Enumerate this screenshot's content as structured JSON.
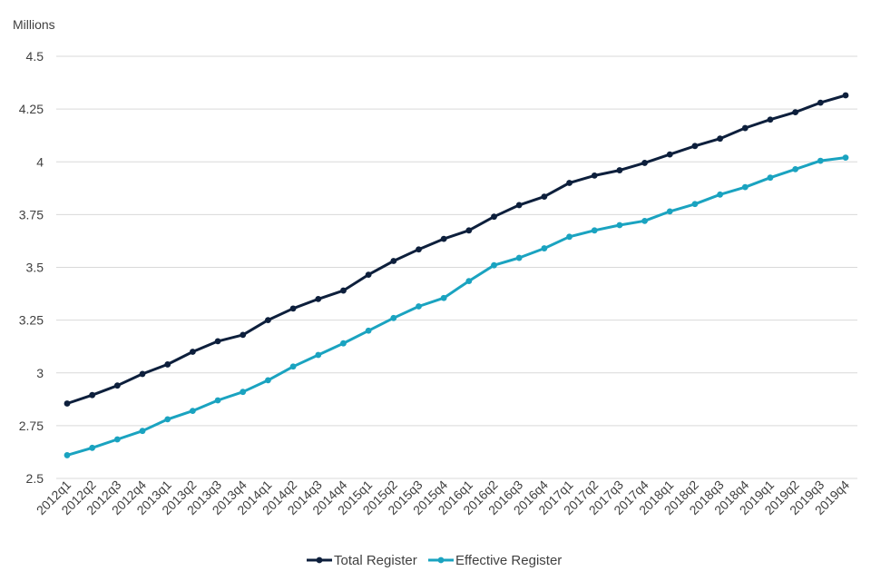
{
  "chart_data": {
    "type": "line",
    "unit_label": "Millions",
    "categories": [
      "2012q1",
      "2012q2",
      "2012q3",
      "2012q4",
      "2013q1",
      "2013q2",
      "2013q3",
      "2013q4",
      "2014q1",
      "2014q2",
      "2014q3",
      "2014q4",
      "2015q1",
      "2015q2",
      "2015q3",
      "2015q4",
      "2016q1",
      "2016q2",
      "2016q3",
      "2016q4",
      "2017q1",
      "2017q2",
      "2017q3",
      "2017q4",
      "2018q1",
      "2018q2",
      "2018q3",
      "2018q4",
      "2019q1",
      "2019q2",
      "2019q3",
      "2019q4"
    ],
    "y_ticks": [
      "4.5",
      "4.25",
      "4",
      "3.75",
      "3.5",
      "3.25",
      "3",
      "2.75",
      "2.5"
    ],
    "ylim": [
      2.5,
      4.5
    ],
    "grid": true,
    "legend_position": "bottom-center",
    "series": [
      {
        "name": "Total Register",
        "color": "#0d1f3c",
        "values": [
          2.855,
          2.895,
          2.94,
          2.995,
          3.04,
          3.1,
          3.15,
          3.18,
          3.25,
          3.305,
          3.35,
          3.39,
          3.465,
          3.53,
          3.585,
          3.635,
          3.675,
          3.74,
          3.795,
          3.835,
          3.9,
          3.935,
          3.96,
          3.995,
          4.035,
          4.075,
          4.11,
          4.16,
          4.2,
          4.235,
          4.28,
          4.315
        ]
      },
      {
        "name": "Effective Register",
        "color": "#1aa3c0",
        "values": [
          2.61,
          2.645,
          2.685,
          2.725,
          2.78,
          2.82,
          2.87,
          2.91,
          2.965,
          3.03,
          3.085,
          3.14,
          3.2,
          3.26,
          3.315,
          3.355,
          3.435,
          3.51,
          3.545,
          3.59,
          3.645,
          3.675,
          3.7,
          3.72,
          3.765,
          3.8,
          3.845,
          3.88,
          3.925,
          3.965,
          4.005,
          4.02
        ]
      }
    ]
  }
}
